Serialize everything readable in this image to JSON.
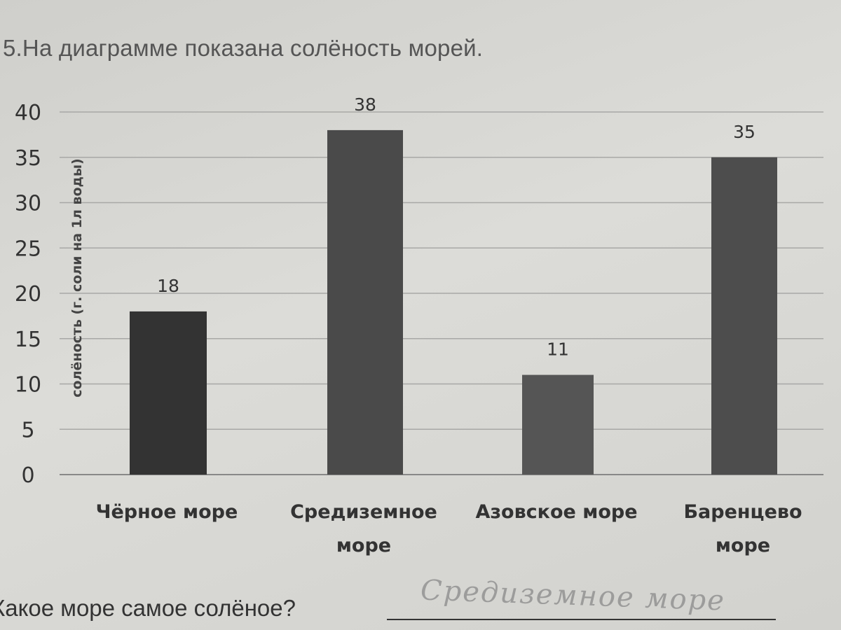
{
  "question": {
    "title": "5.На диаграмме показана солёность морей.",
    "prompt": "Какое море самое солёное?",
    "handwritten_answer": "Средиземное море"
  },
  "chart_data": {
    "type": "bar",
    "title": "",
    "ylabel": "солёность (г. соли на 1л воды)",
    "xlabel": "",
    "ylim": [
      0,
      40
    ],
    "yticks": [
      0,
      5,
      10,
      15,
      20,
      25,
      30,
      35,
      40
    ],
    "grid": true,
    "categories": [
      [
        "Чёрное море"
      ],
      [
        "Средиземное",
        "море"
      ],
      [
        "Азовское море"
      ],
      [
        "Баренцево",
        "море"
      ]
    ],
    "values": [
      18,
      38,
      11,
      35
    ],
    "value_labels": [
      "18",
      "38",
      "11",
      "35"
    ],
    "colors": [
      "#333333",
      "#4a4a4a",
      "#555555",
      "#4d4d4d"
    ]
  }
}
